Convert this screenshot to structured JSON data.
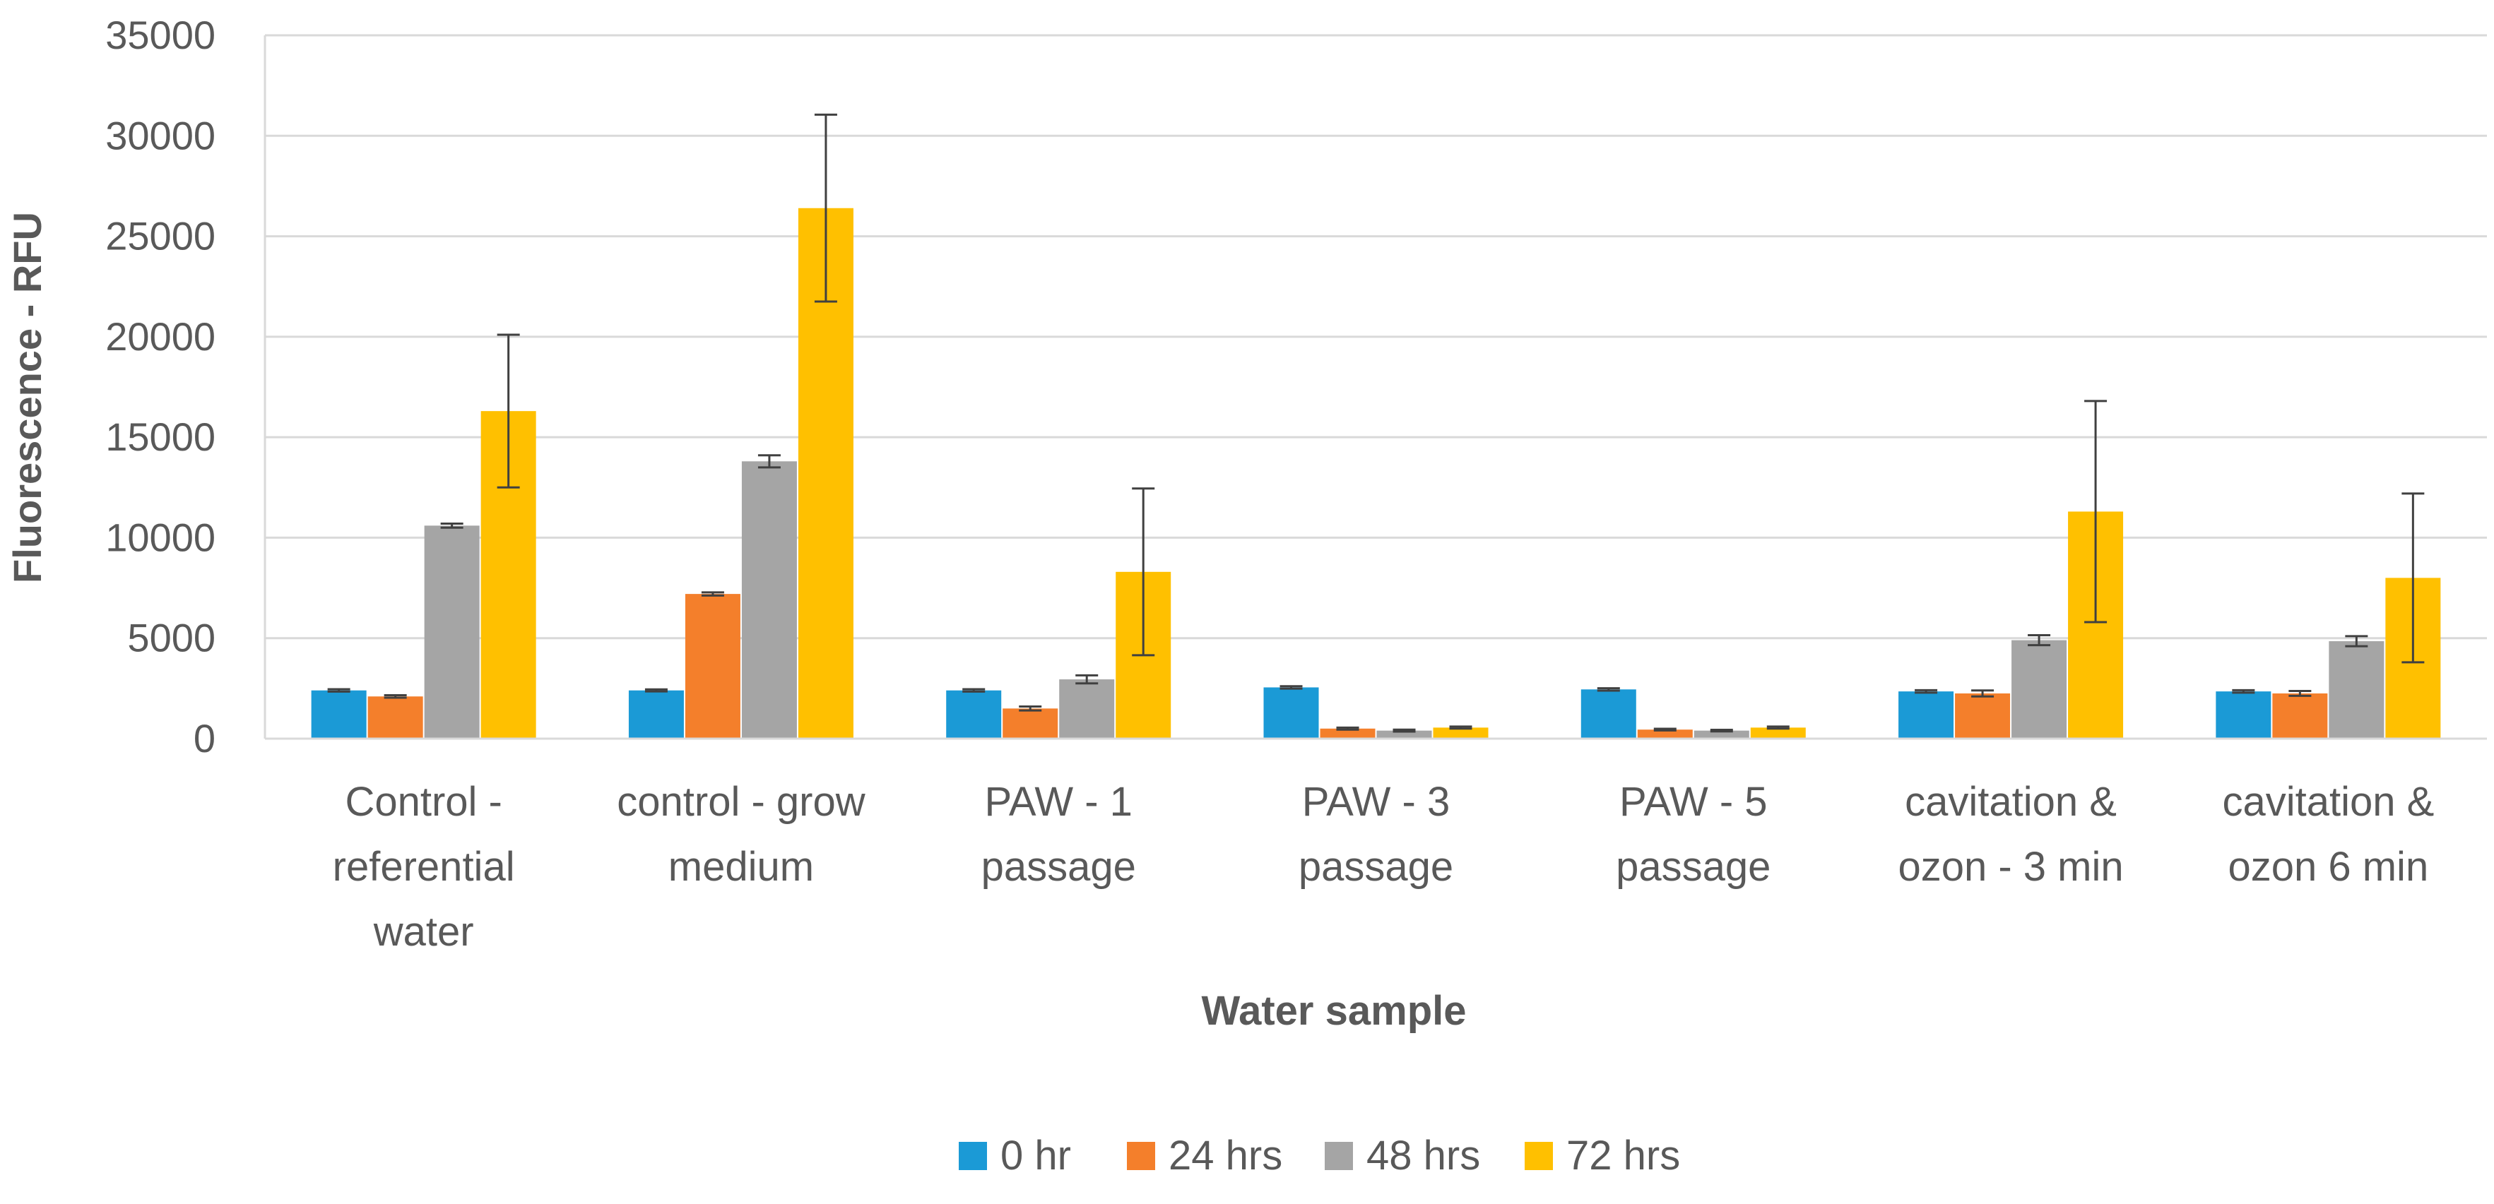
{
  "chart_data": {
    "type": "bar",
    "title": "",
    "xlabel": "Water sample",
    "ylabel": "Fluorescence - RFU",
    "ylim": [
      0,
      35000
    ],
    "yticks": [
      0,
      5000,
      10000,
      15000,
      20000,
      25000,
      30000,
      35000
    ],
    "grid": true,
    "legend_position": "bottom-center",
    "categories": [
      [
        "Control -",
        "referential",
        "water"
      ],
      [
        "control - grow",
        "medium"
      ],
      [
        "PAW - 1",
        "passage"
      ],
      [
        "PAW - 3",
        "passage"
      ],
      [
        "PAW - 5",
        "passage"
      ],
      [
        "cavitation &",
        "ozon - 3 min"
      ],
      [
        "cavitation &",
        "ozon 6 min"
      ]
    ],
    "series": [
      {
        "name": "0 hr",
        "color": "#1B9AD6",
        "values": [
          2400,
          2400,
          2400,
          2550,
          2450,
          2350,
          2350
        ],
        "errors": [
          60,
          50,
          60,
          60,
          60,
          60,
          60
        ]
      },
      {
        "name": "24 hrs",
        "color": "#F47F2B",
        "values": [
          2100,
          7200,
          1500,
          500,
          450,
          2250,
          2250
        ],
        "errors": [
          60,
          80,
          100,
          50,
          40,
          150,
          120
        ]
      },
      {
        "name": "48 hrs",
        "color": "#A5A5A5",
        "values": [
          10600,
          13800,
          2950,
          400,
          400,
          4900,
          4850
        ],
        "errors": [
          100,
          300,
          200,
          50,
          40,
          250,
          250
        ]
      },
      {
        "name": "72 hrs",
        "color": "#FFC000",
        "values": [
          16300,
          26400,
          8300,
          550,
          550,
          11300,
          8000
        ],
        "errors": [
          3800,
          4650,
          4150,
          50,
          50,
          5500,
          4200
        ]
      }
    ]
  },
  "colors": {
    "grid": "#D9D9D9",
    "axis": "#D9D9D9",
    "text": "#595959",
    "error_bar": "#404040"
  }
}
